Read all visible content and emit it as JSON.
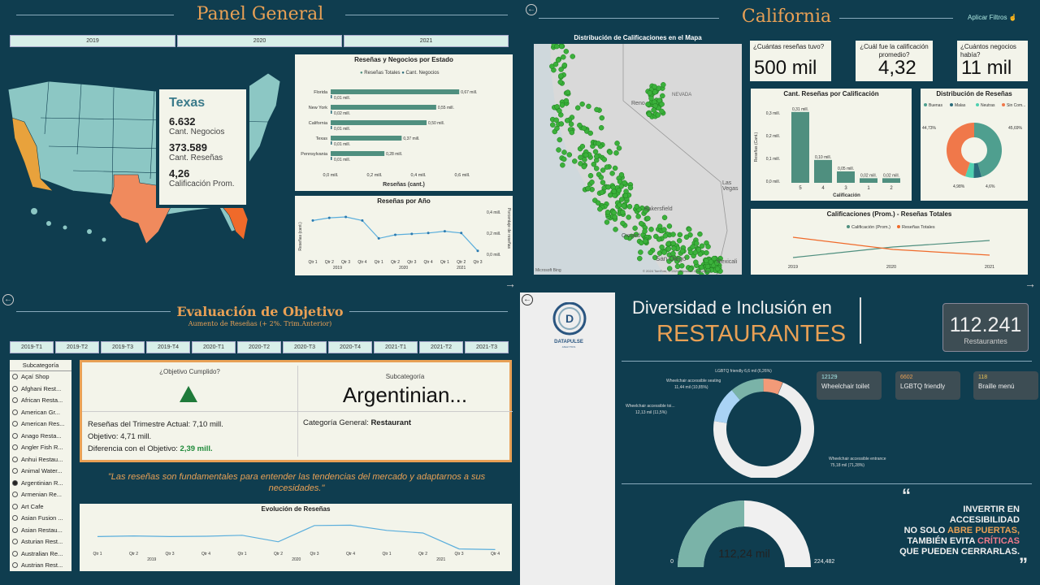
{
  "panel1": {
    "title": "Panel General",
    "years": [
      "2019",
      "2020",
      "2021"
    ],
    "tooltip": {
      "state": "Texas",
      "negocios": "6.632",
      "negocios_label": "Cant. Negocios",
      "resenas": "373.589",
      "resenas_label": "Cant. Reseñas",
      "calif": "4,26",
      "calif_label": "Calificación Prom."
    },
    "bar_chart": {
      "title": "Reseñas y Negocios por Estado",
      "legend": [
        "Reseñas Totales",
        "Cant. Negocios"
      ],
      "xlabel": "Reseñas (cant.)",
      "ticks": [
        "0,0 mill.",
        "0,2 mill.",
        "0,4 mill.",
        "0,6 mill."
      ]
    },
    "line_chart": {
      "title": "Reseñas por Año",
      "ylabel_left": "Reseñas (cant.)",
      "ylabel_right": "Porcentaje de reseñas",
      "right_ticks": [
        "0,4 mill.",
        "0,2 mill.",
        "0,0 mill."
      ],
      "quarters": [
        "Qtr 1",
        "Qtr 2",
        "Qtr 3",
        "Qtr 4",
        "Qtr 1",
        "Qtr 2",
        "Qtr 3",
        "Qtr 4",
        "Qtr 1",
        "Qtr 2",
        "Qtr 3"
      ],
      "years": [
        "2019",
        "2020",
        "2021"
      ]
    }
  },
  "panel2": {
    "title": "California",
    "apply_filters": "Aplicar Filtros",
    "map_title": "Distribución de Calificaciones en el Mapa",
    "map_labels": [
      "Reno",
      "NEVADA",
      "Las Vegas",
      "Bakersfield",
      "San Diego",
      "Mexicali",
      "Oxnard"
    ],
    "map_credit": "Microsoft Bing",
    "map_copyright": "© 2024 TomTom, © 2024 Microsoft Corporation",
    "kpis": [
      {
        "q": "¿Cuántas reseñas tuvo?",
        "v": "500 mil"
      },
      {
        "q": "¿Cuál fue la calificación promedio?",
        "v": "4,32"
      },
      {
        "q": "¿Cuántos negocios había?",
        "v": "11 mil"
      }
    ],
    "rating_chart": {
      "title": "Cant. Reseñas por Calificación",
      "ylabel": "Reseñas (Cant.)",
      "xlabel": "Calificación",
      "yticks": [
        "0,3 mill.",
        "0,2 mill.",
        "0,1 mill.",
        "0,0 mill."
      ]
    },
    "donut": {
      "title": "Distribución de Reseñas",
      "legend": [
        "Buenas",
        "Malas",
        "Neutras",
        "Sin Com..."
      ],
      "labels": [
        "44,73%",
        "45,69%",
        "4,98%",
        "4,6%"
      ]
    },
    "combo": {
      "title": "Calificaciones (Prom.) - Reseñas Totales",
      "legend": [
        "Calificación (Prom.)",
        "Reseñas Totales"
      ],
      "years": [
        "2019",
        "2020",
        "2021"
      ]
    }
  },
  "panel3": {
    "title": "Evaluación de Objetivo",
    "subtitle": "Aumento de Reseñas (+ 2%. Trim.Anterior)",
    "tabs": [
      "2019-T1",
      "2019-T2",
      "2019-T3",
      "2019-T4",
      "2020-T1",
      "2020-T2",
      "2020-T3",
      "2020-T4",
      "2021-T1",
      "2021-T2",
      "2021-T3"
    ],
    "slicer_title": "Subcategoría",
    "slicer": [
      "Açaí Shop",
      "Afghani Rest...",
      "African Resta...",
      "American Gr...",
      "American Res...",
      "Anago Resta...",
      "Angler Fish R...",
      "Anhui Restau...",
      "Animal Water...",
      "Argentinian R...",
      "Armenian Re...",
      "Art Cafe",
      "Asian Fusion ...",
      "Asian Restau...",
      "Asturian Rest...",
      "Australian Re...",
      "Austrian Rest..."
    ],
    "selected_index": 9,
    "objective_title": "¿Objetivo Cumplido?",
    "sub_title": "Subcategoría",
    "sub_value": "Argentinian...",
    "line1": "Reseñas del Trimestre Actual: 7,10 mill.",
    "line2": "Objetivo: 4,71 mill.",
    "line3_label": "Diferencia con el Objetivo: ",
    "line3_value": "2,39 mill.",
    "cat_label": "Categoría General: ",
    "cat_value": "Restaurant",
    "quote": "\"Las reseñas son fundamentales para entender las tendencias del mercado y adaptarnos a sus necesidades.\"",
    "evo_title": "Evolución de Reseñas",
    "quarters": [
      "Qtr 1",
      "Qtr 2",
      "Qtr 3",
      "Qtr 4",
      "Qtr 1",
      "Qtr 2",
      "Qtr 3",
      "Qtr 4",
      "Qtr 1",
      "Qtr 2",
      "Qtr 3",
      "Qtr 4"
    ],
    "years": [
      "2019",
      "2020",
      "2021"
    ]
  },
  "panel4": {
    "logo_text": "DATAPULSE",
    "logo_sub": "ANALYTICS",
    "title1": "Diversidad e Inclusión en",
    "title2": "RESTAURANTES",
    "kpi_value": "112.241",
    "kpi_label": "Restaurantes",
    "donut_labels": [
      "LGBTQ friendly 6,6 mil (6,26%)",
      "Wheelchair accessible seating",
      "11,44 mil (10,85%)",
      "Wheelchair accessible toi...",
      "12,13 mil (11,5%)",
      "Wheelchair accessible entrance",
      "75,18 mil (71,28%)"
    ],
    "stats": [
      {
        "n": "12129",
        "l": "Wheelchair toilet"
      },
      {
        "n": "6602",
        "l": "LGBTQ friendly"
      },
      {
        "n": "118",
        "l": "Braille menú"
      }
    ],
    "gauge": {
      "value": "112,24 mil",
      "min": "0",
      "max": "224,482"
    },
    "quote_lines": [
      [
        "INVERTIR EN",
        ""
      ],
      [
        "ACCESIBILIDAD",
        ""
      ],
      [
        "NO SOLO ",
        "ABRE PUERTAS,"
      ],
      [
        "TAMBIÉN EVITA ",
        "CRÍTICAS"
      ],
      [
        "QUE PUEDEN CERRARLAS.",
        ""
      ]
    ]
  }
}
